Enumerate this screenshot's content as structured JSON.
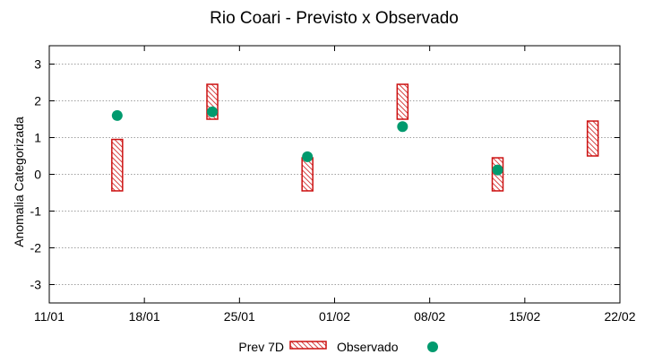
{
  "chart_data": {
    "type": "floating-bar-with-points",
    "title": "Rio Coari - Previsto x Observado",
    "xlabel": "",
    "ylabel": "Anomalia Categorizada",
    "xlim_days": [
      0,
      42
    ],
    "ylim": [
      -3.5,
      3.5
    ],
    "grid": true,
    "x_ticks": [
      {
        "day": 0,
        "label": "11/01"
      },
      {
        "day": 7,
        "label": "18/01"
      },
      {
        "day": 14,
        "label": "25/01"
      },
      {
        "day": 21,
        "label": "01/02"
      },
      {
        "day": 28,
        "label": "08/02"
      },
      {
        "day": 35,
        "label": "15/02"
      },
      {
        "day": 42,
        "label": "22/02"
      }
    ],
    "y_ticks": [
      3,
      2,
      1,
      0,
      -1,
      -2,
      -3
    ],
    "forecast_series": {
      "name": "Prev 7D",
      "color": "#cc1111",
      "ranges": [
        {
          "day": 5,
          "low": -0.45,
          "high": 0.95
        },
        {
          "day": 12,
          "low": 1.5,
          "high": 2.45
        },
        {
          "day": 19,
          "low": -0.45,
          "high": 0.45
        },
        {
          "day": 26,
          "low": 1.5,
          "high": 2.45
        },
        {
          "day": 33,
          "low": -0.45,
          "high": 0.45
        },
        {
          "day": 40,
          "low": 0.5,
          "high": 1.45
        }
      ]
    },
    "observed_series": {
      "name": "Observado",
      "color": "#009a6e",
      "points": [
        {
          "day": 5,
          "value": 1.6
        },
        {
          "day": 12,
          "value": 1.7
        },
        {
          "day": 19,
          "value": 0.48
        },
        {
          "day": 26,
          "value": 1.3
        },
        {
          "day": 33,
          "value": 0.12
        }
      ]
    },
    "legend_position": "bottom-center"
  }
}
